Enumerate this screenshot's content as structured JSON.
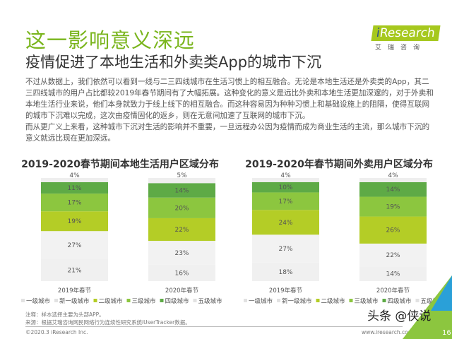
{
  "title": "这一影响意义深远",
  "subtitle": "疫情促进了本地生活和外卖类App的城市下沉",
  "logo": {
    "brand_i": "i",
    "brand_rest": "Research",
    "cn": "艾瑞咨询"
  },
  "paragraphs": [
    "不过从数据上，我们依然可以看到一线与二三四线城市在生活习惯上的相互融合。无论是本地生活还是外卖类的App，其二三四线城市的用户占比都较2019年春节期间有了大幅拓展。这种变化的意义是远比外卖和本地生活更加深邃的，对于外卖和本地生活行业来说，他们本身就致力于线上线下的相互融合。而这种容易因为种种习惯上和基础设施上的阻隔，使得互联网的城市下沉难以完成，这次由疫情固化的返乡，则在无意间加速了互联网的城市下沉。",
    "而从更广义上来看，这种城市下沉对生活的影响并不重要，一旦远程办公因为疫情而成为商业生活的主流，那么城市下沉的意义就远比现在更加深远。"
  ],
  "colors": {
    "一级城市": "#f0f0f0",
    "新一级城市": "#f2f2f2",
    "二级城市": "#b4cd26",
    "三级城市": "#8cc63f",
    "四级城市": "#5eaa46",
    "五级城市": "#eeeeee"
  },
  "chart_data": [
    {
      "type": "bar",
      "stacked": true,
      "title": "2019-2020春节期间本地生活用户区域分布",
      "categories": [
        "2019年春节",
        "2020年春节"
      ],
      "legend_position": "bottom",
      "series": [
        {
          "name": "一级城市",
          "values": [
            21,
            16
          ]
        },
        {
          "name": "新一级城市",
          "values": [
            27,
            23
          ]
        },
        {
          "name": "二级城市",
          "values": [
            19,
            22
          ]
        },
        {
          "name": "三级城市",
          "values": [
            17,
            20
          ]
        },
        {
          "name": "四级城市",
          "values": [
            11,
            14
          ]
        },
        {
          "name": "五级城市",
          "values": [
            4,
            5
          ]
        }
      ]
    },
    {
      "type": "bar",
      "stacked": true,
      "title": "2019-2020年春节期间外卖用户区域分布",
      "categories": [
        "2019年春节",
        "2020年春节"
      ],
      "legend_position": "bottom",
      "series": [
        {
          "name": "一级城市",
          "values": [
            18,
            14
          ]
        },
        {
          "name": "新一级城市",
          "values": [
            27,
            22
          ]
        },
        {
          "name": "二级城市",
          "values": [
            24,
            26
          ]
        },
        {
          "name": "三级城市",
          "values": [
            17,
            19
          ]
        },
        {
          "name": "四级城市",
          "values": [
            10,
            14
          ]
        },
        {
          "name": "五级城市",
          "values": [
            4,
            4
          ]
        }
      ]
    }
  ],
  "notes": [
    "注释：样本选择主要为头部APP。",
    "来源：根据艾瑞咨询网民网络行为连续性研究系统iUserTracker数据。"
  ],
  "footer": {
    "copyright": "©2020.3 iResearch Inc.",
    "website": "www.iresearch.com.cn",
    "page": "16",
    "watermark": "头条 @侠说"
  }
}
